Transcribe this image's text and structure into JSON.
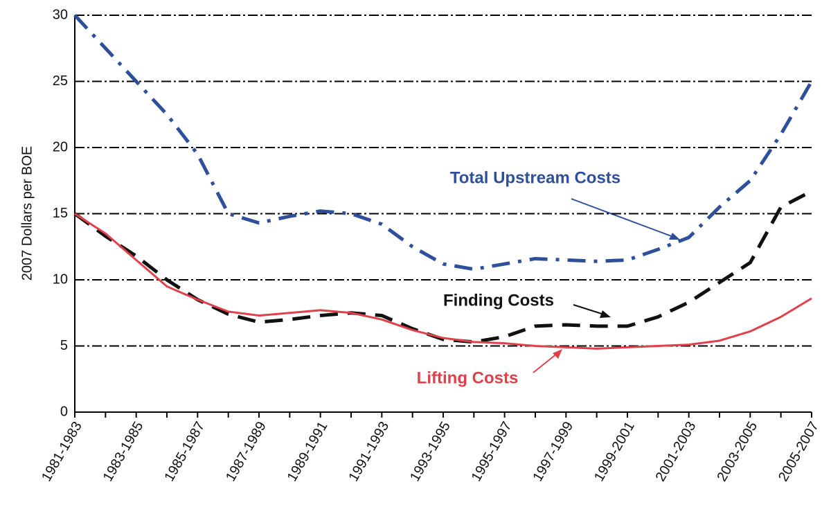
{
  "chart_data": {
    "type": "line",
    "y_label": "2007 Dollars per BOE",
    "categories": [
      "1981-1983",
      null,
      "1983-1985",
      null,
      "1985-1987",
      null,
      "1987-1989",
      null,
      "1989-1991",
      null,
      "1991-1993",
      null,
      "1993-1995",
      null,
      "1995-1997",
      null,
      "1997-1999",
      null,
      "1999-2001",
      null,
      "2001-2003",
      null,
      "2003-2005",
      null,
      "2005-2007"
    ],
    "series": [
      {
        "name": "Total Upstream Costs",
        "color": "#2e4f9a",
        "dash": "dashdot",
        "values": [
          30,
          27.5,
          25,
          22.5,
          19.5,
          15,
          14.3,
          14.8,
          15.2,
          15,
          14.2,
          12.5,
          11.2,
          10.8,
          11.2,
          11.6,
          11.5,
          11.4,
          11.5,
          12.3,
          13.2,
          15.5,
          17.5,
          21,
          25
        ]
      },
      {
        "name": "Finding Costs",
        "color": "#111111",
        "dash": "dashed",
        "values": [
          15,
          13.3,
          11.8,
          10,
          8.5,
          7.4,
          6.8,
          7,
          7.3,
          7.5,
          7.3,
          6.3,
          5.5,
          5.3,
          5.7,
          6.5,
          6.6,
          6.5,
          6.5,
          7.2,
          8.3,
          9.8,
          11.3,
          15.5,
          16.7
        ]
      },
      {
        "name": "Lifting Costs",
        "color": "#e0404a",
        "dash": "solid",
        "values": [
          15,
          13.5,
          11.5,
          9.5,
          8.5,
          7.6,
          7.3,
          7.5,
          7.7,
          7.5,
          7,
          6.2,
          5.6,
          5.3,
          5.2,
          5,
          4.9,
          4.8,
          4.9,
          5,
          5.1,
          5.4,
          6.1,
          7.2,
          8.6
        ]
      }
    ],
    "ylim": [
      0,
      30
    ],
    "yticks": [
      0,
      5,
      10,
      15,
      20,
      25,
      30
    ],
    "grid": true
  }
}
